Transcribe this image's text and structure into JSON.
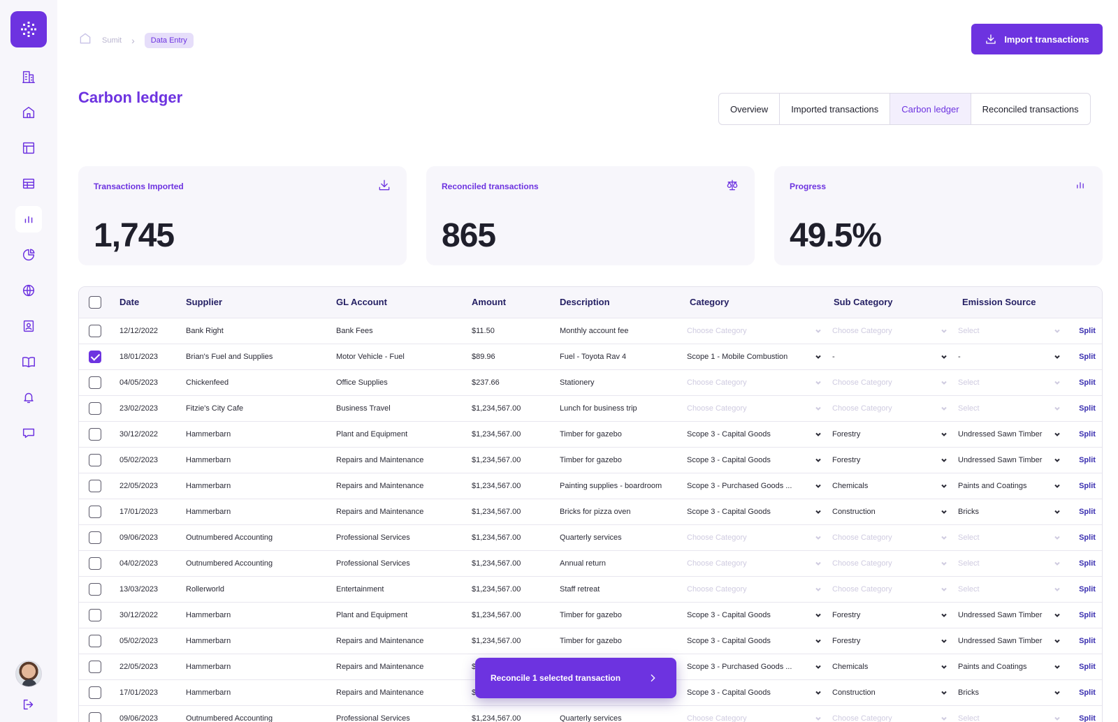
{
  "sidebar": {
    "items": [
      {
        "name": "company",
        "icon": "building-icon"
      },
      {
        "name": "home",
        "icon": "home-icon"
      },
      {
        "name": "layout",
        "icon": "layout-icon"
      },
      {
        "name": "table",
        "icon": "table-icon"
      },
      {
        "name": "analytics",
        "icon": "bar-chart-icon",
        "active": true
      },
      {
        "name": "reports",
        "icon": "pie-chart-icon"
      },
      {
        "name": "globe",
        "icon": "globe-icon"
      },
      {
        "name": "contacts",
        "icon": "contact-card-icon"
      },
      {
        "name": "library",
        "icon": "book-icon"
      },
      {
        "name": "notifications",
        "icon": "bell-icon"
      },
      {
        "name": "messages",
        "icon": "message-icon"
      }
    ]
  },
  "breadcrumb": {
    "root": "Sumit",
    "current": "Data Entry"
  },
  "header": {
    "title": "Carbon ledger",
    "import_label": "Import transactions"
  },
  "tabs": [
    {
      "label": "Overview",
      "active": false
    },
    {
      "label": "Imported transactions",
      "active": false
    },
    {
      "label": "Carbon ledger",
      "active": true
    },
    {
      "label": "Reconciled transactions",
      "active": false
    }
  ],
  "stats": [
    {
      "label": "Transactions Imported",
      "value": "1,745",
      "icon": "download-icon"
    },
    {
      "label": "Reconciled transactions",
      "value": "865",
      "icon": "scale-icon"
    },
    {
      "label": "Progress",
      "value": "49.5%",
      "icon": "bar-chart-icon"
    }
  ],
  "table": {
    "columns": [
      "Date",
      "Supplier",
      "GL Account",
      "Amount",
      "Description",
      "Category",
      "Sub Category",
      "Emission Source"
    ],
    "split_label": "Split",
    "placeholders": {
      "category": "Choose Category",
      "sub_category": "Choose Category",
      "emission": "Select"
    },
    "rows": [
      {
        "checked": false,
        "date": "12/12/2022",
        "supplier": "Bank Right",
        "gl": "Bank Fees",
        "amount": "$11.50",
        "desc": "Monthly account fee",
        "cat": "",
        "sub": "",
        "src": ""
      },
      {
        "checked": true,
        "date": "18/01/2023",
        "supplier": "Brian's Fuel and Supplies",
        "gl": "Motor Vehicle - Fuel",
        "amount": "$89.96",
        "desc": "Fuel - Toyota Rav 4",
        "cat": "Scope 1 - Mobile Combustion",
        "sub": "-",
        "src": "-"
      },
      {
        "checked": false,
        "date": "04/05/2023",
        "supplier": "Chickenfeed",
        "gl": "Office Supplies",
        "amount": "$237.66",
        "desc": "Stationery",
        "cat": "",
        "sub": "",
        "src": ""
      },
      {
        "checked": false,
        "date": "23/02/2023",
        "supplier": "Fitzie's City Cafe",
        "gl": "Business Travel",
        "amount": "$1,234,567.00",
        "desc": "Lunch for business trip",
        "cat": "",
        "sub": "",
        "src": ""
      },
      {
        "checked": false,
        "date": "30/12/2022",
        "supplier": "Hammerbarn",
        "gl": "Plant and Equipment",
        "amount": "$1,234,567.00",
        "desc": "Timber for gazebo",
        "cat": "Scope 3 - Capital Goods",
        "sub": "Forestry",
        "src": "Undressed Sawn Timber"
      },
      {
        "checked": false,
        "date": "05/02/2023",
        "supplier": "Hammerbarn",
        "gl": "Repairs and Maintenance",
        "amount": "$1,234,567.00",
        "desc": "Timber for gazebo",
        "cat": "Scope 3 - Capital Goods",
        "sub": "Forestry",
        "src": "Undressed Sawn Timber"
      },
      {
        "checked": false,
        "date": "22/05/2023",
        "supplier": "Hammerbarn",
        "gl": "Repairs and Maintenance",
        "amount": "$1,234,567.00",
        "desc": "Painting supplies - boardroom",
        "cat": "Scope 3 - Purchased Goods ...",
        "sub": "Chemicals",
        "src": "Paints and Coatings"
      },
      {
        "checked": false,
        "date": "17/01/2023",
        "supplier": "Hammerbarn",
        "gl": "Repairs and Maintenance",
        "amount": "$1,234,567.00",
        "desc": "Bricks for pizza oven",
        "cat": "Scope 3 - Capital Goods",
        "sub": "Construction",
        "src": "Bricks"
      },
      {
        "checked": false,
        "date": "09/06/2023",
        "supplier": "Outnumbered Accounting",
        "gl": "Professional Services",
        "amount": "$1,234,567.00",
        "desc": "Quarterly services",
        "cat": "",
        "sub": "",
        "src": ""
      },
      {
        "checked": false,
        "date": "04/02/2023",
        "supplier": "Outnumbered Accounting",
        "gl": "Professional Services",
        "amount": "$1,234,567.00",
        "desc": "Annual return",
        "cat": "",
        "sub": "",
        "src": ""
      },
      {
        "checked": false,
        "date": "13/03/2023",
        "supplier": "Rollerworld",
        "gl": "Entertainment",
        "amount": "$1,234,567.00",
        "desc": "Staff retreat",
        "cat": "",
        "sub": "",
        "src": ""
      },
      {
        "checked": false,
        "date": "30/12/2022",
        "supplier": "Hammerbarn",
        "gl": "Plant and Equipment",
        "amount": "$1,234,567.00",
        "desc": "Timber for gazebo",
        "cat": "Scope 3 - Capital Goods",
        "sub": "Forestry",
        "src": "Undressed Sawn Timber"
      },
      {
        "checked": false,
        "date": "05/02/2023",
        "supplier": "Hammerbarn",
        "gl": "Repairs and Maintenance",
        "amount": "$1,234,567.00",
        "desc": "Timber for gazebo",
        "cat": "Scope 3 - Capital Goods",
        "sub": "Forestry",
        "src": "Undressed Sawn Timber"
      },
      {
        "checked": false,
        "date": "22/05/2023",
        "supplier": "Hammerbarn",
        "gl": "Repairs and Maintenance",
        "amount": "$",
        "desc": "",
        "cat": "Scope 3 - Purchased Goods ...",
        "sub": "Chemicals",
        "src": "Paints and Coatings"
      },
      {
        "checked": false,
        "date": "17/01/2023",
        "supplier": "Hammerbarn",
        "gl": "Repairs and Maintenance",
        "amount": "$",
        "desc": "",
        "cat": "Scope 3 - Capital Goods",
        "sub": "Construction",
        "src": "Bricks"
      },
      {
        "checked": false,
        "date": "09/06/2023",
        "supplier": "Outnumbered Accounting",
        "gl": "Professional Services",
        "amount": "$1,234,567.00",
        "desc": "Quarterly services",
        "cat": "",
        "sub": "",
        "src": ""
      }
    ]
  },
  "reconcile": {
    "label": "Reconcile 1 selected transaction"
  },
  "colors": {
    "accent": "#6d33e0",
    "card_bg": "#f7f6fb",
    "placeholder": "#cfcbe0"
  }
}
